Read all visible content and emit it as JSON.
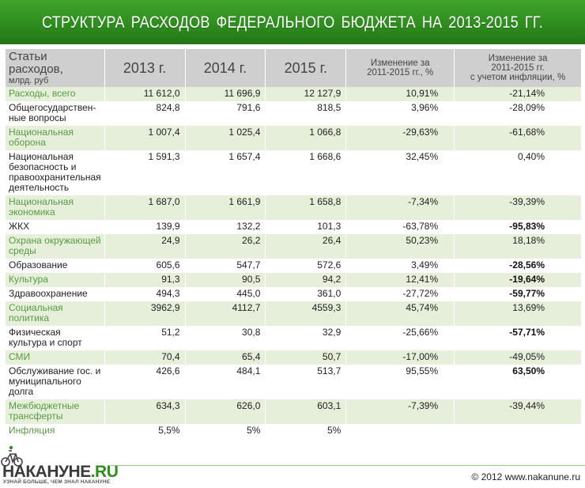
{
  "title": "СТРУКТУРА  РАСХОДОВ  ФЕДЕРАЛЬНОГО БЮДЖЕТА  НА  2013-2015  ГГ.",
  "table": {
    "headers": {
      "name_line1": "Статьи расходов,",
      "name_line2": "млрд. руб",
      "y2013": "2013 г.",
      "y2014": "2014 г.",
      "y2015": "2015 г.",
      "change_1": "Изменение за",
      "change_2": "2011-2015 гг., %",
      "infl_1": "Изменение за",
      "infl_2": "2011-2015 гг.",
      "infl_3": "с учетом инфляции, %"
    },
    "rows": [
      {
        "name": "Расходы, всего",
        "y2013": "11 612,0",
        "y2014": "11 696,9",
        "y2015": "12 127,9",
        "change": "10,91%",
        "change_infl": "-21,14%"
      },
      {
        "name": "Общегосударствен-ные вопросы",
        "y2013": "824,8",
        "y2014": "791,6",
        "y2015": "818,5",
        "change": "3,96%",
        "change_infl": "-28,09%"
      },
      {
        "name": "Национальная оборона",
        "y2013": "1 007,4",
        "y2014": "1 025,4",
        "y2015": "1 066,8",
        "change": "-29,63%",
        "change_infl": "-61,68%"
      },
      {
        "name": "Национальная безопасность и правоохранительная деятельность",
        "y2013": "1 591,3",
        "y2014": "1 657,4",
        "y2015": "1 668,6",
        "change": "32,45%",
        "change_infl": "0,40%"
      },
      {
        "name": "Национальная экономика",
        "y2013": "1 687,0",
        "y2014": "1 661,9",
        "y2015": "1 658,8",
        "change": "-7,34%",
        "change_infl": "-39,39%"
      },
      {
        "name": "ЖКХ",
        "y2013": "139,9",
        "y2014": "132,2",
        "y2015": "101,3",
        "change": "-63,78%",
        "change_infl": "-95,83%"
      },
      {
        "name": "Охрана окружающей среды",
        "y2013": "24,9",
        "y2014": "26,2",
        "y2015": "26,4",
        "change": "50,23%",
        "change_infl": "18,18%"
      },
      {
        "name": "Образование",
        "y2013": "605,6",
        "y2014": "547,7",
        "y2015": "572,6",
        "change": "3,49%",
        "change_infl": "-28,56%"
      },
      {
        "name": "Культура",
        "y2013": "91,3",
        "y2014": "90,5",
        "y2015": "94,2",
        "change": "12,41%",
        "change_infl": "-19,64%"
      },
      {
        "name": "Здравоохранение",
        "y2013": "494,3",
        "y2014": "445,0",
        "y2015": "361,0",
        "change": "-27,72%",
        "change_infl": "-59,77%"
      },
      {
        "name": "Социальная политика",
        "y2013": "3962,9",
        "y2014": "4112,7",
        "y2015": "4559,3",
        "change": "45,74%",
        "change_infl": "13,69%"
      },
      {
        "name": "Физическая культура и спорт",
        "y2013": "51,2",
        "y2014": "30,8",
        "y2015": "32,9",
        "change": "-25,66%",
        "change_infl": "-57,71%"
      },
      {
        "name": "СМИ",
        "y2013": "70,4",
        "y2014": "65,4",
        "y2015": "50,7",
        "change": "-17,00%",
        "change_infl": "-49,05%"
      },
      {
        "name": "Обслуживание гос. и муниципального долга",
        "y2013": "426,6",
        "y2014": "484,1",
        "y2015": "513,7",
        "change": "95,55%",
        "change_infl": "63,50%"
      },
      {
        "name": "Межбюджетные трансферты",
        "y2013": "634,3",
        "y2014": "626,0",
        "y2015": "603,1",
        "change": "-7,39%",
        "change_infl": "-39,44%"
      },
      {
        "name": "Инфляция",
        "y2013": "5,5%",
        "y2014": "5%",
        "y2015": "5%",
        "change": "",
        "change_infl": ""
      }
    ]
  },
  "footer": {
    "logo_main": "НАКАНУНЕ",
    "logo_ru": ".RU",
    "logo_tagline": "УЗНАЙ БОЛЬШЕ, ЧЕМ ЗНАЛ НАКАНУНЕ",
    "copyright": "© 2012 www.nakanune.ru"
  },
  "colors": {
    "header_green": "#2f8d1f",
    "row_stripe": "#e5efd9",
    "label_green": "#5a9a44"
  }
}
